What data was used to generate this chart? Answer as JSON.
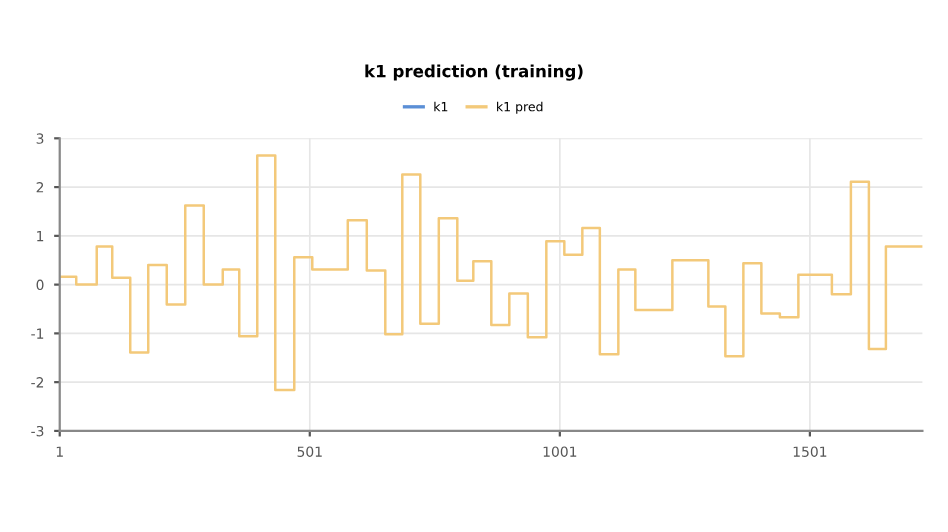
{
  "chart_data": {
    "type": "step",
    "title": "k1 prediction (training)",
    "x": [
      1,
      34,
      75,
      106,
      142,
      178,
      215,
      252,
      289,
      327,
      360,
      396,
      432,
      470,
      506,
      577,
      615,
      652,
      686,
      722,
      759,
      796,
      828,
      864,
      900,
      937,
      974,
      1010,
      1046,
      1081,
      1118,
      1152,
      1226,
      1298,
      1332,
      1368,
      1404,
      1441,
      1478,
      1545,
      1583,
      1619,
      1653,
      1689,
      1726
    ],
    "series": [
      {
        "name": "k1",
        "color": "#5b8fd6",
        "values": [
          null,
          null,
          null,
          null,
          null,
          null,
          null,
          null,
          null,
          null,
          null,
          null,
          null,
          null,
          null,
          null,
          null,
          null,
          null,
          null,
          null,
          null,
          null,
          null,
          null,
          null,
          null,
          null,
          null,
          null,
          null,
          null,
          null,
          null,
          null,
          null,
          null,
          null,
          null,
          null,
          null,
          null,
          null,
          null,
          null
        ]
      },
      {
        "name": "k1 pred",
        "color": "#f3c97a",
        "values": [
          0.16,
          0,
          0.78,
          0.14,
          -1.39,
          0.4,
          -0.41,
          1.62,
          0,
          0.31,
          -1.06,
          2.65,
          -2.16,
          0.56,
          0.31,
          1.32,
          0.29,
          -1.02,
          2.26,
          -0.8,
          1.36,
          0.08,
          0.48,
          -0.83,
          -0.18,
          -1.08,
          0.89,
          0.61,
          1.16,
          -1.43,
          0.31,
          -0.52,
          0.5,
          -0.45,
          -1.47,
          0.44,
          -0.59,
          -0.67,
          0.2,
          -0.2,
          2.11,
          -1.32,
          0.78,
          0.78,
          0.78
        ]
      }
    ],
    "xlim": [
      1,
      1726
    ],
    "xticks": [
      1,
      501,
      1001,
      1501
    ],
    "ylim": [
      -3,
      3
    ],
    "yticks": [
      -3,
      -2,
      -1,
      0,
      1,
      2,
      3
    ],
    "grid": true,
    "legend": "top"
  }
}
